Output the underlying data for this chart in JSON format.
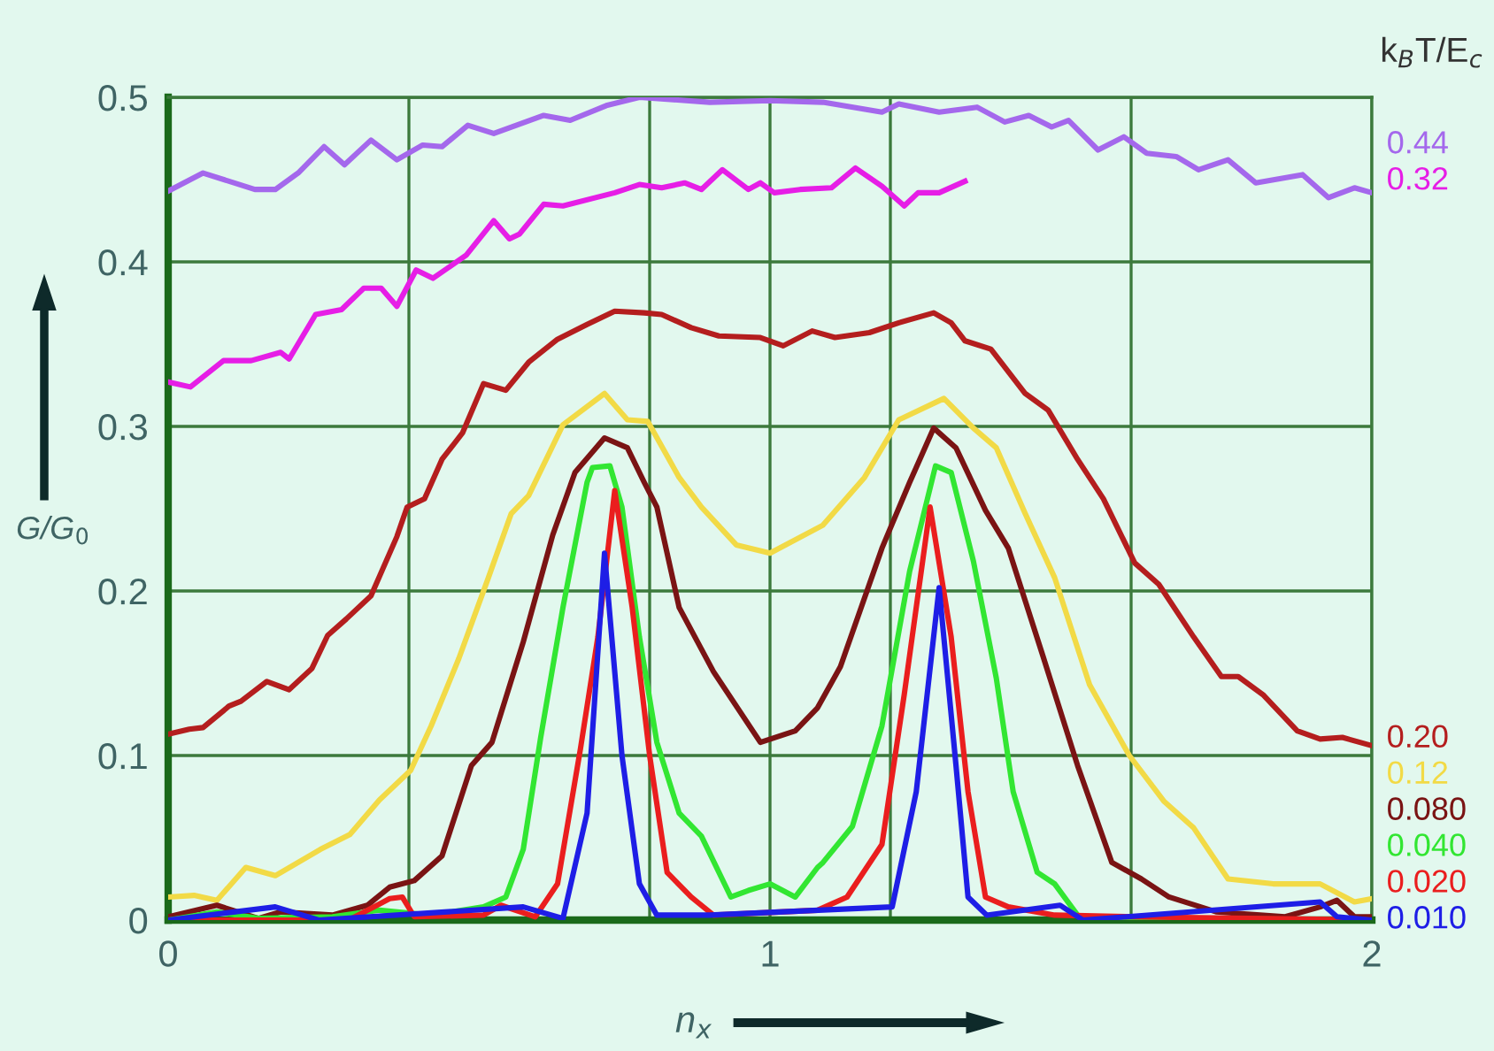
{
  "chart_data": {
    "type": "line",
    "xlabel": "n$_{x}$",
    "ylabel": "G/G$_{0}$",
    "legend_title": "k$_{B}$T/E$_{c}$",
    "xlim": [
      0,
      2
    ],
    "ylim": [
      0,
      0.5
    ],
    "xticks": [
      0,
      {
        "value": 0.4,
        "label": null
      },
      {
        "value": 0.8,
        "label": null
      },
      1,
      {
        "value": 1.2,
        "label": null
      },
      {
        "value": 1.6,
        "label": null
      },
      2
    ],
    "yticks": [
      0,
      0.1,
      0.2,
      0.3,
      0.4,
      0.5
    ],
    "grid": true,
    "legend": false,
    "marker": "none",
    "line_style": "solid",
    "series": [
      {
        "name": "0.44",
        "color": "#a468ec",
        "x": [
          0,
          0.058,
          0.144,
          0.178,
          0.216,
          0.259,
          0.293,
          0.337,
          0.38,
          0.423,
          0.455,
          0.498,
          0.541,
          0.624,
          0.668,
          0.728,
          0.783,
          0.9,
          1.0,
          1.088,
          1.186,
          1.214,
          1.281,
          1.344,
          1.39,
          1.43,
          1.468,
          1.496,
          1.545,
          1.588,
          1.626,
          1.675,
          1.712,
          1.761,
          1.807,
          1.885,
          1.928,
          1.971,
          2.0
        ],
        "values": [
          0.443,
          0.454,
          0.444,
          0.444,
          0.454,
          0.47,
          0.459,
          0.474,
          0.462,
          0.471,
          0.47,
          0.483,
          0.478,
          0.489,
          0.486,
          0.495,
          0.5,
          0.497,
          0.498,
          0.497,
          0.491,
          0.496,
          0.491,
          0.494,
          0.485,
          0.489,
          0.482,
          0.486,
          0.468,
          0.476,
          0.466,
          0.464,
          0.456,
          0.462,
          0.448,
          0.453,
          0.439,
          0.445,
          0.442
        ]
      },
      {
        "name": "0.32",
        "color": "#e61ee6",
        "x": [
          0,
          0.037,
          0.092,
          0.138,
          0.187,
          0.201,
          0.245,
          0.288,
          0.325,
          0.354,
          0.38,
          0.412,
          0.44,
          0.495,
          0.541,
          0.567,
          0.584,
          0.624,
          0.656,
          0.742,
          0.783,
          0.82,
          0.858,
          0.886,
          0.921,
          0.964,
          0.984,
          1.007,
          1.05,
          1.102,
          1.142,
          1.186,
          1.223,
          1.246,
          1.281,
          1.324
        ],
        "values": [
          0.327,
          0.324,
          0.34,
          0.34,
          0.345,
          0.341,
          0.368,
          0.371,
          0.384,
          0.384,
          0.373,
          0.395,
          0.39,
          0.404,
          0.425,
          0.414,
          0.417,
          0.435,
          0.434,
          0.442,
          0.447,
          0.445,
          0.448,
          0.444,
          0.456,
          0.444,
          0.448,
          0.442,
          0.444,
          0.445,
          0.457,
          0.446,
          0.434,
          0.442,
          0.442,
          0.449
        ]
      },
      {
        "name": "0.20",
        "color": "#b41e1e",
        "x": [
          0,
          0.035,
          0.058,
          0.101,
          0.121,
          0.164,
          0.201,
          0.239,
          0.265,
          0.296,
          0.337,
          0.38,
          0.397,
          0.426,
          0.455,
          0.489,
          0.524,
          0.561,
          0.599,
          0.647,
          0.696,
          0.742,
          0.791,
          0.82,
          0.869,
          0.915,
          0.984,
          1.022,
          1.07,
          1.108,
          1.165,
          1.214,
          1.272,
          1.301,
          1.324,
          1.367,
          1.424,
          1.462,
          1.511,
          1.554,
          1.606,
          1.646,
          1.704,
          1.75,
          1.778,
          1.819,
          1.876,
          1.914,
          1.951,
          2.0
        ],
        "values": [
          0.113,
          0.116,
          0.117,
          0.13,
          0.133,
          0.145,
          0.14,
          0.153,
          0.173,
          0.183,
          0.197,
          0.233,
          0.251,
          0.256,
          0.28,
          0.296,
          0.326,
          0.322,
          0.339,
          0.353,
          0.362,
          0.37,
          0.369,
          0.368,
          0.36,
          0.355,
          0.354,
          0.349,
          0.358,
          0.354,
          0.357,
          0.363,
          0.369,
          0.363,
          0.352,
          0.347,
          0.32,
          0.31,
          0.28,
          0.256,
          0.217,
          0.204,
          0.172,
          0.148,
          0.148,
          0.137,
          0.115,
          0.11,
          0.111,
          0.106
        ]
      },
      {
        "name": "0.12",
        "color": "#f2da46",
        "x": [
          0,
          0.043,
          0.081,
          0.129,
          0.178,
          0.253,
          0.302,
          0.351,
          0.403,
          0.437,
          0.483,
          0.532,
          0.57,
          0.599,
          0.656,
          0.725,
          0.763,
          0.797,
          0.849,
          0.886,
          0.944,
          1.0,
          1.088,
          1.157,
          1.214,
          1.289,
          1.338,
          1.376,
          1.424,
          1.473,
          1.531,
          1.597,
          1.655,
          1.704,
          1.761,
          1.836,
          1.914,
          1.971,
          2.0
        ],
        "values": [
          0.014,
          0.015,
          0.012,
          0.032,
          0.027,
          0.043,
          0.052,
          0.073,
          0.091,
          0.118,
          0.159,
          0.208,
          0.247,
          0.258,
          0.301,
          0.32,
          0.304,
          0.303,
          0.269,
          0.251,
          0.228,
          0.223,
          0.24,
          0.269,
          0.304,
          0.317,
          0.299,
          0.287,
          0.247,
          0.208,
          0.143,
          0.1,
          0.072,
          0.056,
          0.025,
          0.022,
          0.022,
          0.011,
          0.013
        ]
      },
      {
        "name": "0.080",
        "color": "#7a1414",
        "x": [
          0,
          0.081,
          0.15,
          0.187,
          0.273,
          0.331,
          0.368,
          0.409,
          0.455,
          0.504,
          0.538,
          0.59,
          0.639,
          0.676,
          0.725,
          0.763,
          0.791,
          0.812,
          0.849,
          0.906,
          0.984,
          1.042,
          1.079,
          1.117,
          1.186,
          1.232,
          1.272,
          1.309,
          1.358,
          1.396,
          1.453,
          1.511,
          1.568,
          1.617,
          1.663,
          1.741,
          1.856,
          1.914,
          1.942,
          1.971,
          2.0
        ],
        "values": [
          0.002,
          0.009,
          0.001,
          0.005,
          0.003,
          0.009,
          0.02,
          0.024,
          0.039,
          0.094,
          0.108,
          0.169,
          0.234,
          0.272,
          0.293,
          0.287,
          0.266,
          0.251,
          0.19,
          0.151,
          0.108,
          0.115,
          0.129,
          0.154,
          0.226,
          0.266,
          0.299,
          0.287,
          0.249,
          0.226,
          0.161,
          0.094,
          0.035,
          0.025,
          0.014,
          0.005,
          0.002,
          0.008,
          0.012,
          0.002,
          0.002
        ]
      },
      {
        "name": "0.040",
        "color": "#32e632",
        "x": [
          0,
          0.081,
          0.15,
          0.273,
          0.351,
          0.437,
          0.524,
          0.561,
          0.59,
          0.619,
          0.656,
          0.696,
          0.705,
          0.734,
          0.754,
          0.783,
          0.812,
          0.849,
          0.886,
          0.935,
          0.964,
          1.0,
          1.042,
          1.079,
          1.088,
          1.137,
          1.186,
          1.232,
          1.275,
          1.301,
          1.338,
          1.376,
          1.404,
          1.444,
          1.473,
          1.511,
          1.53,
          1.7,
          2.0
        ],
        "values": [
          0.0,
          0.005,
          0.001,
          0.002,
          0.006,
          0.003,
          0.008,
          0.014,
          0.043,
          0.111,
          0.19,
          0.266,
          0.275,
          0.276,
          0.251,
          0.172,
          0.108,
          0.065,
          0.051,
          0.014,
          0.018,
          0.022,
          0.014,
          0.032,
          0.035,
          0.057,
          0.118,
          0.212,
          0.276,
          0.272,
          0.218,
          0.147,
          0.078,
          0.029,
          0.022,
          0.003,
          0.0,
          0.001,
          0.0
        ]
      },
      {
        "name": "0.020",
        "color": "#ea1e1e",
        "x": [
          0,
          0.3,
          0.368,
          0.389,
          0.409,
          0.524,
          0.553,
          0.61,
          0.647,
          0.685,
          0.714,
          0.742,
          0.771,
          0.8,
          0.829,
          0.869,
          0.906,
          1.079,
          1.128,
          1.186,
          1.223,
          1.266,
          1.301,
          1.329,
          1.358,
          1.396,
          1.473,
          1.6,
          2.0
        ],
        "values": [
          0.0,
          0.0,
          0.013,
          0.014,
          0.002,
          0.003,
          0.009,
          0.002,
          0.022,
          0.104,
          0.172,
          0.261,
          0.19,
          0.1,
          0.029,
          0.014,
          0.003,
          0.006,
          0.014,
          0.046,
          0.137,
          0.251,
          0.172,
          0.078,
          0.014,
          0.008,
          0.003,
          0.002,
          0.0
        ]
      },
      {
        "name": "0.010",
        "color": "#1e1ee6",
        "x": [
          0,
          0.178,
          0.25,
          0.59,
          0.656,
          0.696,
          0.725,
          0.754,
          0.783,
          0.812,
          0.9,
          1.203,
          1.243,
          1.281,
          1.309,
          1.329,
          1.36,
          1.482,
          1.52,
          1.914,
          1.942,
          2.0
        ],
        "values": [
          0.0,
          0.008,
          0.0,
          0.008,
          0.001,
          0.065,
          0.223,
          0.1,
          0.022,
          0.003,
          0.003,
          0.008,
          0.078,
          0.202,
          0.094,
          0.014,
          0.003,
          0.009,
          0.0,
          0.011,
          0.002,
          0.0
        ]
      }
    ]
  }
}
